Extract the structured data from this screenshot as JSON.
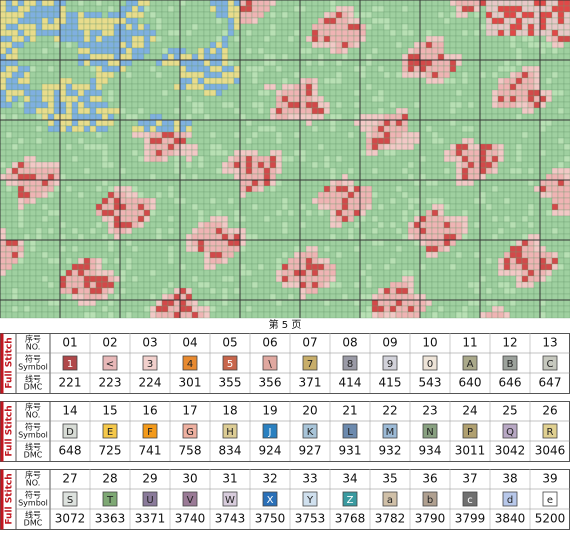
{
  "page_label": "第 5 页",
  "legend": {
    "section_label": "Full Stitch",
    "row_labels": {
      "no": [
        "序号",
        "NO."
      ],
      "symbol": [
        "符号",
        "Symbol"
      ],
      "dmc": [
        "线号",
        "DMC"
      ]
    },
    "tables": [
      {
        "numbers": [
          "01",
          "02",
          "03",
          "04",
          "05",
          "06",
          "07",
          "08",
          "09",
          "10",
          "11",
          "12",
          "13"
        ],
        "symbols": [
          "1",
          "<",
          "3",
          "4",
          "5",
          "\\",
          "7",
          "8",
          "9",
          "0",
          "A",
          "B",
          "C"
        ],
        "dmc": [
          "221",
          "223",
          "224",
          "301",
          "355",
          "356",
          "371",
          "414",
          "415",
          "543",
          "640",
          "646",
          "647"
        ],
        "colors": [
          "#b0484a",
          "#e8b8b8",
          "#f2d0cc",
          "#e88a30",
          "#c8664c",
          "#e0a8a0",
          "#c8ae6a",
          "#9a9aa6",
          "#d2d2da",
          "#eee4d8",
          "#aaa98a",
          "#9ca29c",
          "#c6c8be"
        ]
      },
      {
        "numbers": [
          "14",
          "15",
          "16",
          "17",
          "18",
          "19",
          "20",
          "21",
          "22",
          "23",
          "24",
          "25",
          "26"
        ],
        "symbols": [
          "D",
          "E",
          "F",
          "G",
          "H",
          "J",
          "K",
          "L",
          "M",
          "N",
          "P",
          "Q",
          "R"
        ],
        "dmc": [
          "648",
          "725",
          "741",
          "758",
          "834",
          "924",
          "927",
          "931",
          "932",
          "934",
          "3011",
          "3042",
          "3046"
        ],
        "colors": [
          "#d8dcd6",
          "#f5c84a",
          "#f39a1a",
          "#eeb0a0",
          "#dccc94",
          "#2a80c0",
          "#a8c4d8",
          "#6c8aae",
          "#9cbad6",
          "#88a080",
          "#b0a070",
          "#b8a8c4",
          "#e0d090"
        ]
      },
      {
        "numbers": [
          "27",
          "28",
          "29",
          "30",
          "31",
          "32",
          "33",
          "34",
          "35",
          "36",
          "37",
          "38",
          "39"
        ],
        "symbols": [
          "S",
          "T",
          "U",
          "V",
          "W",
          "X",
          "Y",
          "Z",
          "a",
          "b",
          "c",
          "d",
          "e"
        ],
        "dmc": [
          "3072",
          "3363",
          "3371",
          "3740",
          "3743",
          "3750",
          "3753",
          "3768",
          "3782",
          "3790",
          "3799",
          "3840",
          "5200"
        ],
        "colors": [
          "#dde2de",
          "#7ea874",
          "#8a7a9a",
          "#9a7a96",
          "#d8ccdc",
          "#2a70b8",
          "#d0e0ee",
          "#3a9aa0",
          "#d0c0a8",
          "#b0a090",
          "#707070",
          "#b8c8ea",
          "#ffffff"
        ]
      }
    ]
  }
}
